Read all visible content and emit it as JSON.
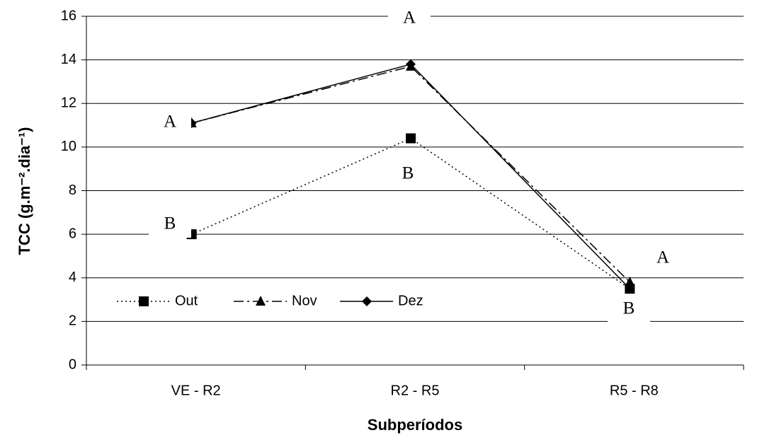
{
  "chart_data": {
    "type": "line",
    "x_label": "Subperíodos",
    "y_label": "TCC (g.m⁻².dia⁻¹)",
    "categories": [
      "VE - R2",
      "R2 - R5",
      "R5 - R8"
    ],
    "series": [
      {
        "name": "Out",
        "color": "#000000",
        "line_style": "dotted",
        "marker": "square",
        "values": [
          6.0,
          10.4,
          3.5
        ]
      },
      {
        "name": "Nov",
        "color": "#000000",
        "line_style": "dashdot",
        "marker": "triangle",
        "values": [
          11.1,
          13.7,
          3.8
        ]
      },
      {
        "name": "Dez",
        "color": "#000000",
        "line_style": "solid",
        "marker": "diamond",
        "values": [
          11.1,
          13.8,
          3.5
        ]
      }
    ],
    "annotations": [
      "A",
      "B",
      "A",
      "B",
      "A",
      "B"
    ],
    "ylim": [
      0,
      16
    ],
    "yticks": [
      0,
      2,
      4,
      6,
      8,
      10,
      12,
      14,
      16
    ],
    "grid": true,
    "legend": "lower left"
  }
}
